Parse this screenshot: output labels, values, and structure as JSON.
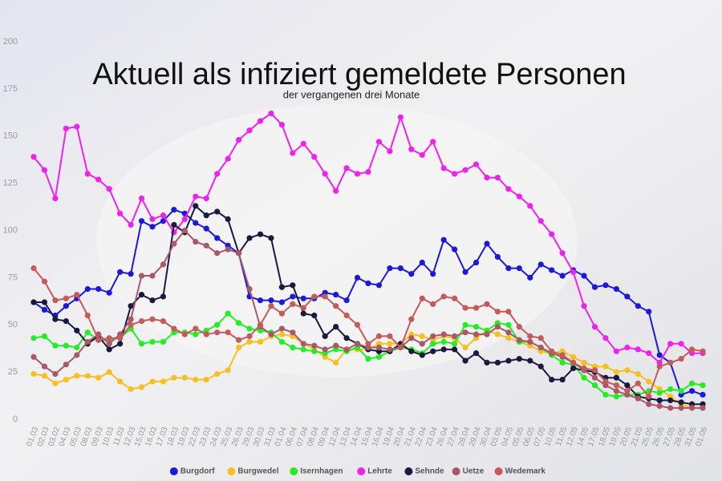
{
  "chart_data": {
    "type": "line",
    "title": "Aktuell als infiziert gemeldete Personen",
    "subtitle": "der vergangenen drei Monate",
    "categories": [
      "01.03",
      "02.03",
      "03.02",
      "04.03",
      "05.03",
      "08.03",
      "09.03",
      "10.03",
      "11.03",
      "12.03",
      "15.03",
      "16.03",
      "17.03",
      "18.03",
      "19.03",
      "22.03",
      "23.03",
      "24.03",
      "25.03",
      "26.03",
      "29.03",
      "30.03",
      "31.03",
      "01.04",
      "06.04",
      "07.04",
      "08.04",
      "09.04",
      "12.04",
      "13.04",
      "14.04",
      "15.04",
      "16.04",
      "19.04",
      "20.04",
      "21.04",
      "22.04",
      "23.04",
      "26.04",
      "27.04",
      "28.04",
      "29.04",
      "30.04",
      "03.05",
      "04.05",
      "05.05",
      "06.05",
      "07.05",
      "10.05",
      "11.05",
      "12.05",
      "14.05",
      "17.05",
      "18.05",
      "19.05",
      "20.05",
      "21.05",
      "25.05",
      "26.05",
      "27.05",
      "28.05",
      "31.05",
      "01.06"
    ],
    "series": [
      {
        "name": "Burgdorf",
        "color": "#1a1ad8",
        "values": [
          62,
          58,
          55,
          60,
          64,
          69,
          69,
          67,
          78,
          77,
          105,
          102,
          105,
          111,
          109,
          104,
          101,
          96,
          92,
          88,
          65,
          63,
          63,
          62,
          65,
          64,
          64,
          67,
          66,
          63,
          75,
          72,
          71,
          80,
          80,
          77,
          83,
          77,
          95,
          90,
          78,
          83,
          93,
          86,
          80,
          80,
          75,
          82,
          79,
          76,
          79,
          76,
          70,
          71,
          69,
          65,
          60,
          57,
          34,
          30,
          13,
          15,
          13
        ]
      },
      {
        "name": "Burgwedel",
        "color": "#f5c020",
        "values": [
          24,
          23,
          19,
          21,
          23,
          23,
          22,
          25,
          20,
          16,
          17,
          20,
          20,
          22,
          22,
          21,
          21,
          24,
          26,
          38,
          41,
          41,
          44,
          45,
          44,
          40,
          37,
          33,
          30,
          37,
          37,
          37,
          40,
          40,
          40,
          45,
          44,
          42,
          44,
          43,
          38,
          43,
          47,
          45,
          43,
          41,
          39,
          36,
          35,
          36,
          33,
          30,
          28,
          28,
          25,
          26,
          24,
          20,
          16,
          12,
          8,
          6,
          6
        ]
      },
      {
        "name": "Isernhagen",
        "color": "#22ee22",
        "values": [
          43,
          44,
          39,
          39,
          38,
          46,
          42,
          42,
          43,
          48,
          40,
          41,
          41,
          46,
          46,
          45,
          47,
          50,
          56,
          51,
          48,
          47,
          46,
          41,
          38,
          37,
          36,
          35,
          37,
          36,
          38,
          32,
          33,
          36,
          38,
          37,
          35,
          40,
          41,
          40,
          50,
          49,
          47,
          51,
          50,
          41,
          41,
          38,
          34,
          30,
          29,
          22,
          18,
          13,
          12,
          13,
          13,
          15,
          14,
          16,
          15,
          19,
          18
        ]
      },
      {
        "name": "Lehrte",
        "color": "#ee22ee",
        "values": [
          139,
          132,
          117,
          154,
          155,
          130,
          127,
          122,
          109,
          103,
          117,
          106,
          108,
          99,
          106,
          118,
          117,
          130,
          138,
          148,
          153,
          158,
          162,
          156,
          141,
          146,
          139,
          130,
          121,
          133,
          130,
          131,
          147,
          142,
          160,
          143,
          140,
          147,
          133,
          130,
          132,
          135,
          128,
          128,
          122,
          118,
          113,
          105,
          98,
          88,
          78,
          60,
          49,
          43,
          36,
          38,
          37,
          35,
          30,
          40,
          40,
          35,
          35
        ]
      },
      {
        "name": "Sehnde",
        "color": "#1a1a40",
        "values": [
          62,
          62,
          53,
          52,
          47,
          40,
          44,
          37,
          40,
          60,
          66,
          63,
          65,
          103,
          99,
          113,
          108,
          110,
          106,
          88,
          96,
          98,
          96,
          70,
          71,
          56,
          55,
          44,
          49,
          43,
          40,
          37,
          36,
          36,
          40,
          36,
          34,
          36,
          37,
          37,
          31,
          35,
          30,
          30,
          31,
          32,
          31,
          28,
          21,
          21,
          27,
          26,
          25,
          22,
          22,
          18,
          12,
          11,
          10,
          10,
          9,
          8,
          8
        ]
      },
      {
        "name": "Uetze",
        "color": "#a85868",
        "values": [
          33,
          28,
          24,
          29,
          34,
          41,
          45,
          40,
          45,
          53,
          76,
          76,
          82,
          93,
          100,
          94,
          92,
          88,
          90,
          88,
          69,
          49,
          45,
          48,
          46,
          40,
          39,
          37,
          39,
          37,
          40,
          38,
          38,
          37,
          38,
          43,
          40,
          44,
          45,
          44,
          46,
          45,
          45,
          49,
          46,
          42,
          41,
          38,
          35,
          33,
          30,
          26,
          22,
          18,
          15,
          13,
          11,
          8,
          7,
          6,
          6,
          6,
          6
        ]
      },
      {
        "name": "Wedemark",
        "color": "#c45a5a",
        "values": [
          80,
          73,
          63,
          64,
          66,
          55,
          42,
          43,
          43,
          50,
          52,
          53,
          52,
          48,
          45,
          48,
          45,
          46,
          46,
          42,
          44,
          50,
          60,
          56,
          61,
          59,
          65,
          65,
          60,
          55,
          50,
          40,
          44,
          44,
          38,
          53,
          64,
          61,
          65,
          64,
          59,
          59,
          61,
          57,
          57,
          49,
          44,
          43,
          36,
          34,
          30,
          27,
          26,
          20,
          18,
          15,
          19,
          12,
          28,
          30,
          32,
          37,
          36
        ]
      }
    ],
    "ylim": [
      0,
      200
    ],
    "yticks": [
      0,
      25,
      50,
      75,
      100,
      125,
      150,
      175,
      200
    ],
    "grid": false,
    "legend": "bottom"
  }
}
